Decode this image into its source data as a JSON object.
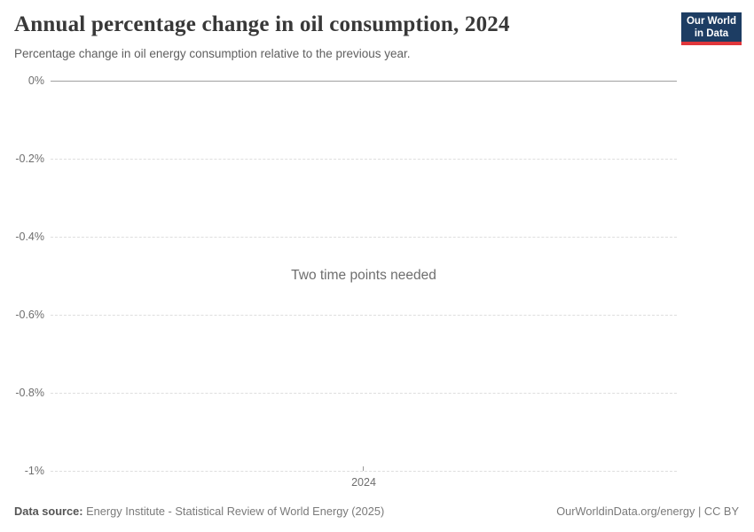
{
  "header": {
    "title": "Annual percentage change in oil consumption, 2024",
    "subtitle": "Percentage change in oil energy consumption relative to the previous year.",
    "logo": {
      "line1": "Our World",
      "line2": "in Data",
      "bg_color": "#1d3d63",
      "accent_color": "#e0363b"
    }
  },
  "chart_data": {
    "type": "line",
    "title": "Annual percentage change in oil consumption, 2024",
    "subtitle": "Percentage change in oil energy consumption relative to the previous year.",
    "series": [],
    "message": "Two time points needed",
    "x": [
      2024
    ],
    "xticks": [
      "2024"
    ],
    "yticks": [
      "0%",
      "-0.2%",
      "-0.4%",
      "-0.6%",
      "-0.8%",
      "-1%"
    ],
    "ytick_values": [
      0,
      -0.2,
      -0.4,
      -0.6,
      -0.8,
      -1
    ],
    "ylim": [
      -1,
      0
    ],
    "ylabel": "",
    "xlabel": "",
    "grid": true,
    "gridline_style": "dashed",
    "zero_line_style": "solid",
    "legend": "none"
  },
  "footer": {
    "source_label": "Data source:",
    "source_text": " Energy Institute - Statistical Review of World Energy (2025)",
    "credit": "OurWorldinData.org/energy | CC BY"
  },
  "colors": {
    "title": "#383838",
    "subtitle": "#5f5f5f",
    "axis_label": "#6e6e6e",
    "gridline_dashed": "#dedede",
    "gridline_zero": "#a0a0a0",
    "message": "#6e6e6e",
    "footer_text": "#7a7a7a",
    "logo_bg": "#1d3d63",
    "logo_accent": "#e0363b"
  }
}
